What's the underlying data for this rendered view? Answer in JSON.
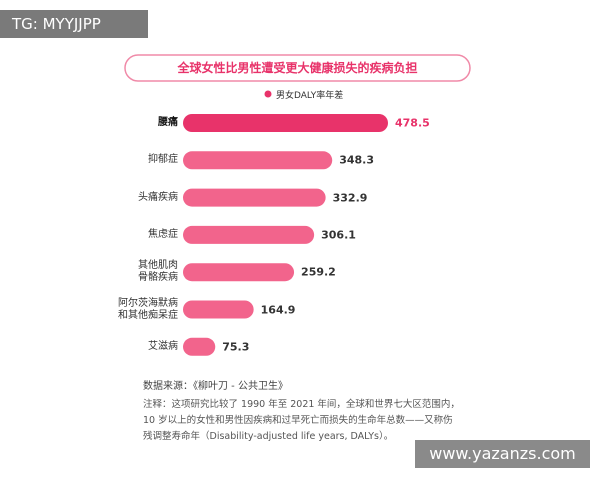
{
  "watermark_top": "TG: MYYJJPP",
  "watermark_bottom": "www.yazanzs.com",
  "chart_data": {
    "type": "hbar",
    "title": "全球女性比男性遭受更大健康损失的疾病负担",
    "series": [
      {
        "name": "男女DALY率年差",
        "color": "#e8336a",
        "values": [
          478.5,
          348.3,
          332.9,
          306.1,
          259.2,
          164.9,
          75.3
        ],
        "colors": [
          "#e8336a",
          "#f2648c",
          "#f2648c",
          "#f2648c",
          "#f2648c",
          "#f2648c",
          "#f2648c"
        ]
      }
    ],
    "categories": [
      "腰痛",
      "抑郁症",
      "头痛疾病",
      "焦虑症",
      "其他肌肉\n骨骼疾病",
      "阿尔茨海默病\n和其他痴呆症",
      "艾滋病"
    ],
    "source": "数据来源：《柳叶刀 - 公共卫生》",
    "notes": [
      "注释：这项研究比较了 1990 年至 2021 年间，全球和世界七大区范围内，",
      "10 岁以上的女性和男性因疾病和过早死亡而损失的生命年总数——又称伤",
      "残调整寿命年（Disability-adjusted life years, DALYs）。"
    ]
  }
}
